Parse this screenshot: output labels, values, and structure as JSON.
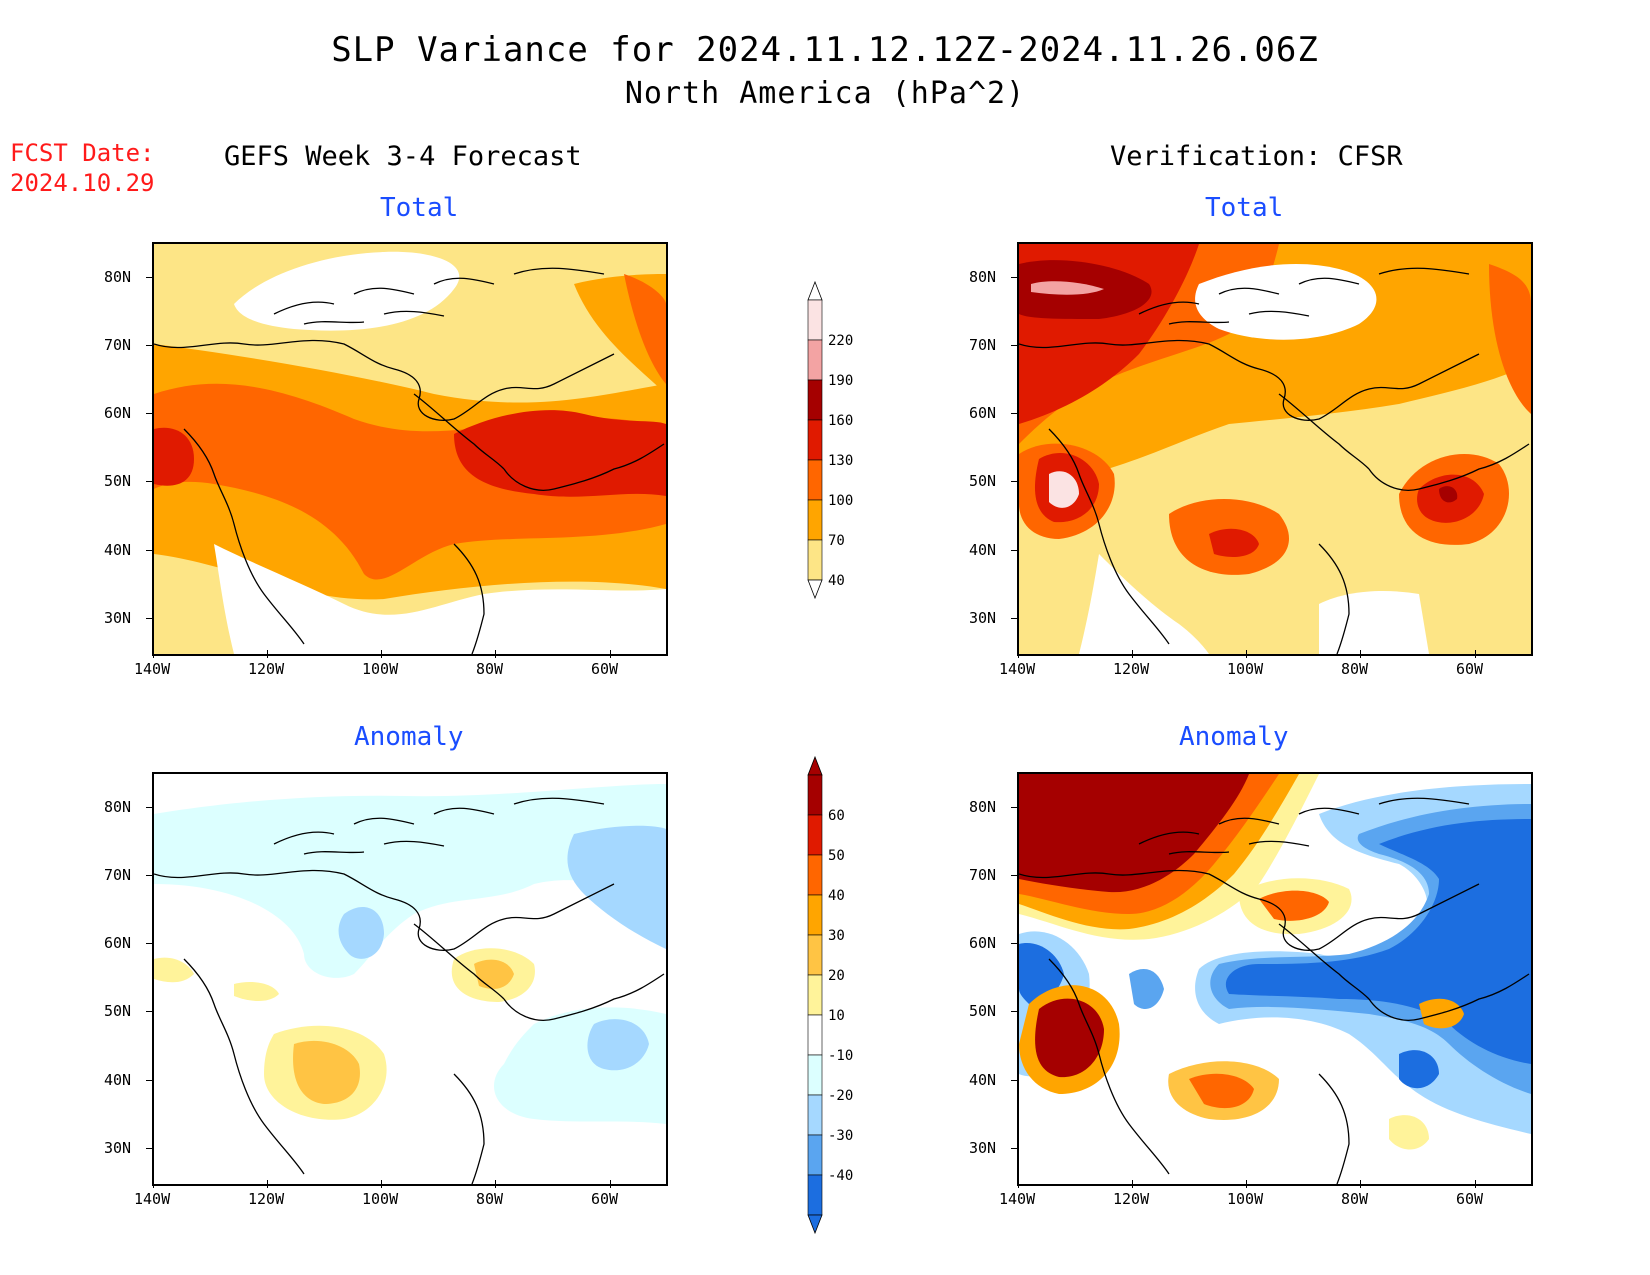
{
  "title": {
    "line1": "SLP Variance for 2024.11.12.12Z-2024.11.26.06Z",
    "line2": "North America (hPa^2)"
  },
  "forecast_date": {
    "label": "FCST Date:",
    "value": "2024.10.29"
  },
  "columns": {
    "left": "GEFS Week 3-4 Forecast",
    "right": "Verification: CFSR"
  },
  "panels": [
    {
      "id": "fcst-total",
      "title": "Total"
    },
    {
      "id": "obs-total",
      "title": "Total"
    },
    {
      "id": "fcst-anomaly",
      "title": "Anomaly"
    },
    {
      "id": "obs-anomaly",
      "title": "Anomaly"
    }
  ],
  "axes": {
    "lat_labels": [
      "80N",
      "70N",
      "60N",
      "50N",
      "40N",
      "30N"
    ],
    "lon_labels": [
      "140W",
      "120W",
      "100W",
      "80W",
      "60W"
    ]
  },
  "colorbars": {
    "total": {
      "levels": [
        "220",
        "190",
        "160",
        "130",
        "100",
        "70",
        "40"
      ],
      "colors": [
        "#fbe3e3",
        "#f3a3a3",
        "#a50000",
        "#e01a00",
        "#ff6600",
        "#ffa500",
        "#fde586"
      ]
    },
    "anomaly": {
      "levels": [
        "60",
        "50",
        "40",
        "30",
        "20",
        "10",
        "-10",
        "-20",
        "-30",
        "-40"
      ],
      "colors": [
        "#a50000",
        "#e01a00",
        "#ff6600",
        "#ffa500",
        "#ffc444",
        "#fff39a",
        "#ffffff",
        "#dcffff",
        "#a5d8ff",
        "#5aa5f0",
        "#1c6ee0"
      ]
    }
  }
}
